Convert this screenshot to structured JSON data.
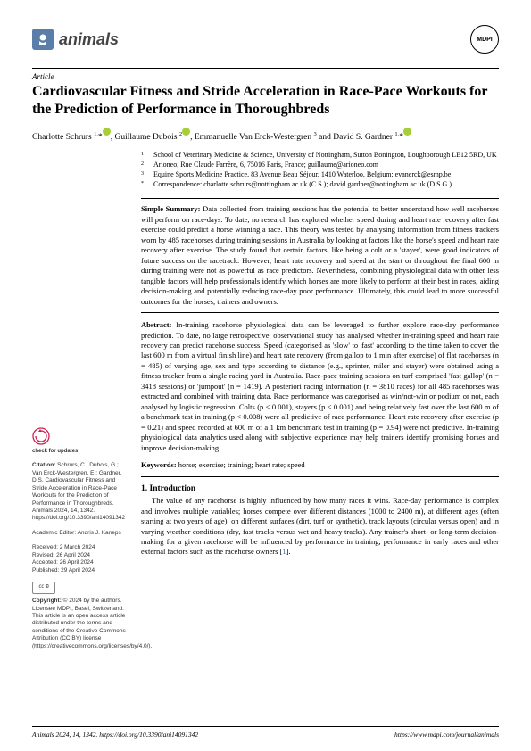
{
  "journal": {
    "name": "animals"
  },
  "publisher": {
    "badge": "MDPI"
  },
  "article": {
    "type": "Article",
    "title": "Cardiovascular Fitness and Stride Acceleration in Race-Pace Workouts for the Prediction of Performance in Thoroughbreds",
    "authors_html": "Charlotte Schrurs <sup>1,</sup>*<span class='orcid'></span>, Guillaume Dubois <sup>2</sup><span class='orcid'></span>, Emmanuelle Van Erck-Westergren <sup>3</sup> and David S. Gardner <sup>1,</sup>*<span class='orcid'></span>"
  },
  "affiliations": [
    {
      "n": "1",
      "text": "School of Veterinary Medicine & Science, University of Nottingham, Sutton Bonington, Loughborough LE12 5RD, UK"
    },
    {
      "n": "2",
      "text": "Arioneo, Rue Claude Farrère, 6, 75016 Paris, France; guillaume@arioneo.com"
    },
    {
      "n": "3",
      "text": "Equine Sports Medicine Practice, 83 Avenue Beau Séjour, 1410 Waterloo, Belgium; evanerck@esmp.be"
    },
    {
      "n": "*",
      "text": "Correspondence: charlotte.schrurs@nottingham.ac.uk (C.S.); david.gardner@nottingham.ac.uk (D.S.G.)"
    }
  ],
  "simple_summary": {
    "label": "Simple Summary:",
    "text": "Data collected from training sessions has the potential to better understand how well racehorses will perform on race-days. To date, no research has explored whether speed during and heart rate recovery after fast exercise could predict a horse winning a race. This theory was tested by analysing information from fitness trackers worn by 485 racehorses during training sessions in Australia by looking at factors like the horse's speed and heart rate recovery after exercise. The study found that certain factors, like being a colt or a 'stayer', were good indicators of future success on the racetrack. However, heart rate recovery and speed at the start or throughout the final 600 m during training were not as powerful as race predictors. Nevertheless, combining physiological data with other less tangible factors will help professionals identify which horses are more likely to perform at their best in races, aiding decision-making and potentially reducing race-day poor performance. Ultimately, this could lead to more successful outcomes for the horses, trainers and owners."
  },
  "abstract": {
    "label": "Abstract:",
    "text": "In-training racehorse physiological data can be leveraged to further explore race-day performance prediction. To date, no large retrospective, observational study has analysed whether in-training speed and heart rate recovery can predict racehorse success. Speed (categorised as 'slow' to 'fast' according to the time taken to cover the last 600 m from a virtual finish line) and heart rate recovery (from gallop to 1 min after exercise) of flat racehorses (n = 485) of varying age, sex and type according to distance (e.g., sprinter, miler and stayer) were obtained using a fitness tracker from a single racing yard in Australia. Race-pace training sessions on turf comprised 'fast gallop' (n = 3418 sessions) or 'jumpout' (n = 1419). A posteriori racing information (n = 3810 races) for all 485 racehorses was extracted and combined with training data. Race performance was categorised as win/not-win or podium or not, each analysed by logistic regression. Colts (p < 0.001), stayers (p < 0.001) and being relatively fast over the last 600 m of a benchmark test in training (p < 0.008) were all predictive of race performance. Heart rate recovery after exercise (p = 0.21) and speed recorded at 600 m of a 1 km benchmark test in training (p = 0.94) were not predictive. In-training physiological data analytics used along with subjective experience may help trainers identify promising horses and improve decision-making."
  },
  "keywords": {
    "label": "Keywords:",
    "text": "horse; exercise; training; heart rate; speed"
  },
  "section1": {
    "heading": "1. Introduction",
    "body": "The value of any racehorse is highly influenced by how many races it wins. Race-day performance is complex and involves multiple variables; horses compete over different distances (1000 to 2400 m), at different ages (often starting at two years of age), on different surfaces (dirt, turf or synthetic), track layouts (circular versus open) and in varying weather conditions (dry, fast tracks versus wet and heavy tracks). Any trainer's short- or long-term decision-making for a given racehorse will be influenced by performance in training, performance in early races and other external factors such as the racehorse owners [1]."
  },
  "sidebar": {
    "check_label": "check for updates",
    "citation_label": "Citation:",
    "citation_text": "Schrurs, C.; Dubois, G.; Van Erck-Westergren, E.; Gardner, D.S. Cardiovascular Fitness and Stride Acceleration in Race-Pace Workouts for the Prediction of Performance in Thoroughbreds. Animals 2024, 14, 1342. https://doi.org/10.3390/ani14091342",
    "editor_label": "Academic Editor:",
    "editor_name": "Andris J. Kaneps",
    "received": "Received: 2 March 2024",
    "revised": "Revised: 26 April 2024",
    "accepted": "Accepted: 26 April 2024",
    "published": "Published: 29 April 2024",
    "cc": "CC BY",
    "copyright_label": "Copyright:",
    "copyright_text": "© 2024 by the authors. Licensee MDPI, Basel, Switzerland. This article is an open access article distributed under the terms and conditions of the Creative Commons Attribution (CC BY) license (https://creativecommons.org/licenses/by/4.0/)."
  },
  "footer": {
    "left": "Animals 2024, 14, 1342. https://doi.org/10.3390/ani14091342",
    "right": "https://www.mdpi.com/journal/animals"
  },
  "colors": {
    "journal_icon_bg": "#5b7ea8",
    "orcid_bg": "#a6ce39",
    "link": "#4169b0"
  }
}
